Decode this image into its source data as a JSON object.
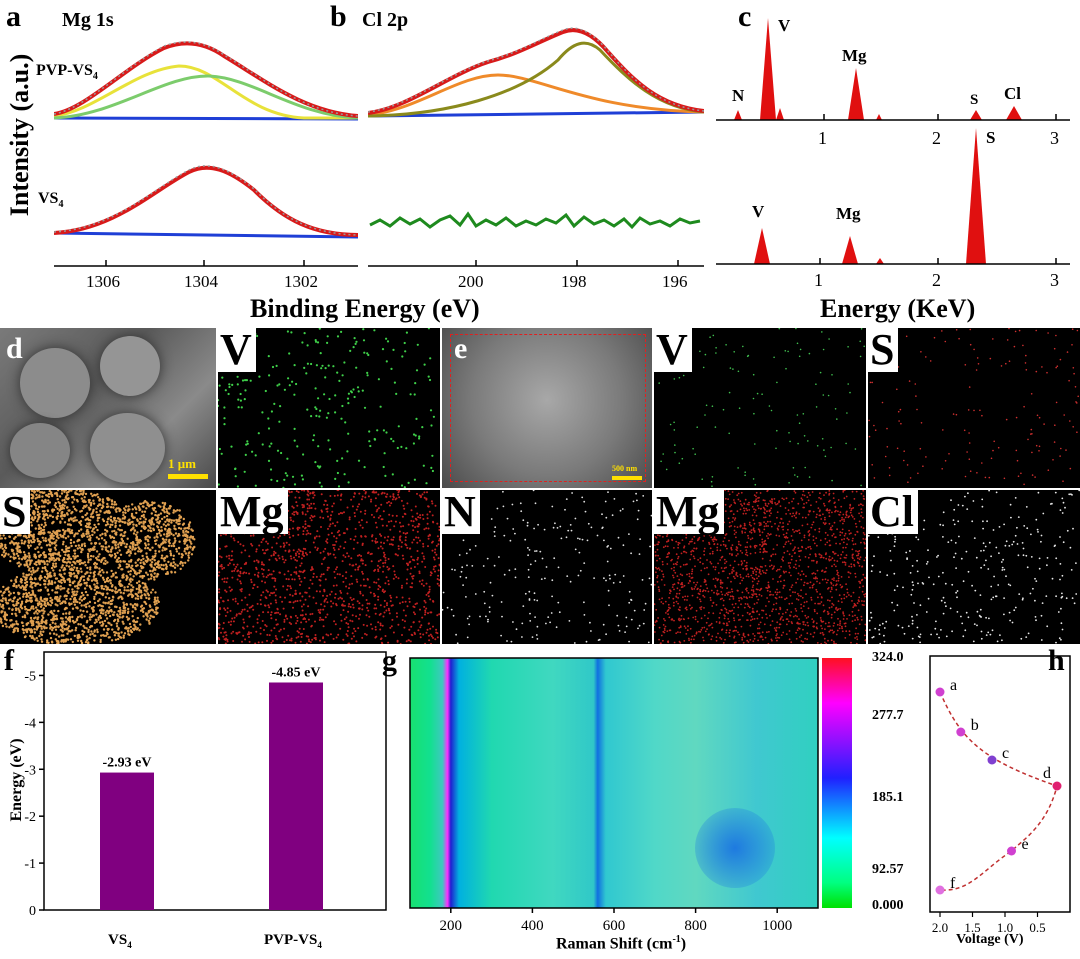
{
  "panel_a": {
    "letter": "a",
    "title": "Mg 1s",
    "label_top": "PVP-VS",
    "label_top_sub": "4",
    "label_bottom": "VS",
    "label_bottom_sub": "4",
    "ylabel": "Intensity (a.u.)",
    "xticks": [
      "1306",
      "1304",
      "1302"
    ]
  },
  "panel_b": {
    "letter": "b",
    "title": "Cl 2p",
    "xticks": [
      "200",
      "198",
      "196"
    ]
  },
  "xps_xlabel": "Binding Energy (eV)",
  "panel_c": {
    "letter": "c",
    "xlabel": "Energy (KeV)",
    "xticks": [
      "1",
      "2",
      "3"
    ],
    "top_peaks": [
      "N",
      "V",
      "Mg",
      "S",
      "Cl"
    ],
    "bottom_peaks": [
      "V",
      "Mg",
      "S"
    ]
  },
  "panel_d": {
    "letter": "d",
    "scalebar": "1 μm",
    "maps": [
      "V",
      "S",
      "Mg"
    ]
  },
  "panel_e": {
    "letter": "e",
    "scalebar": "500 nm",
    "maps": [
      "V",
      "S",
      "N",
      "Mg",
      "Cl"
    ]
  },
  "panel_f": {
    "letter": "f",
    "chart_data": {
      "type": "bar",
      "categories": [
        "VS4",
        "PVP-VS4"
      ],
      "values": [
        -2.93,
        -4.85
      ],
      "value_labels": [
        "-2.93 eV",
        "-4.85 eV"
      ],
      "ylabel": "Energy (eV)",
      "ylim": [
        0,
        -5.5
      ],
      "yticks": [
        "0",
        "-1",
        "-2",
        "-3",
        "-4",
        "-5"
      ],
      "bar_color": "#800080"
    }
  },
  "panel_g": {
    "letter": "g",
    "chart_data": {
      "type": "heatmap",
      "xlabel": "Raman Shift (cm",
      "xlabel_sup": "-1",
      "xlabel_end": ")",
      "xticks": [
        "200",
        "400",
        "600",
        "800",
        "1000"
      ],
      "xlim": [
        100,
        1100
      ],
      "colorbar_ticks": [
        "324.0",
        "277.7",
        "185.1",
        "92.57",
        "0.000"
      ],
      "colorbar_range": [
        0,
        324.0
      ],
      "colormap": [
        "#00e000",
        "#00ffff",
        "#0000ff",
        "#ff00ff",
        "#ff0000"
      ]
    }
  },
  "panel_h": {
    "letter": "h",
    "chart_data": {
      "type": "scatter",
      "xlabel": "Voltage (V)",
      "xticks": [
        "2.0",
        "1.5",
        "1.0",
        "0.5"
      ],
      "points": [
        {
          "label": "a",
          "voltage": 2.0
        },
        {
          "label": "b",
          "voltage": 1.68
        },
        {
          "label": "c",
          "voltage": 1.2
        },
        {
          "label": "d",
          "voltage": 0.2
        },
        {
          "label": "e",
          "voltage": 0.9
        },
        {
          "label": "f",
          "voltage": 2.0
        }
      ]
    }
  }
}
